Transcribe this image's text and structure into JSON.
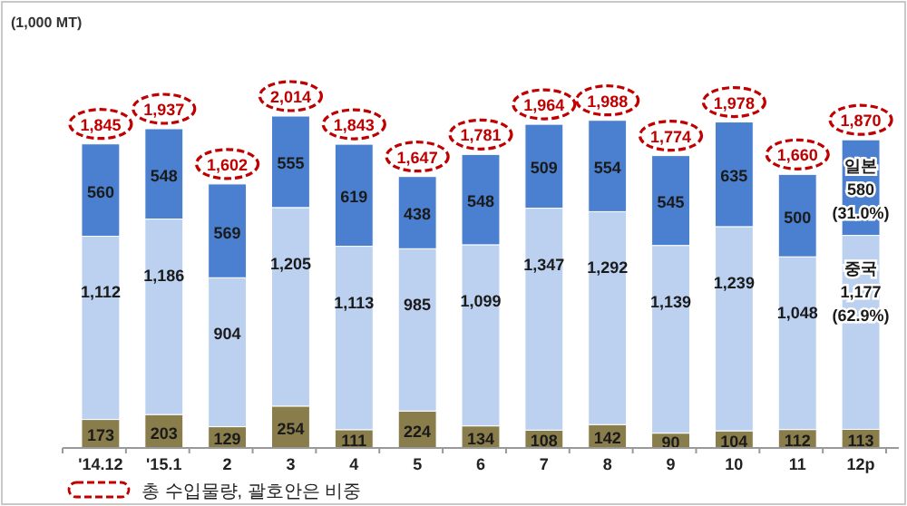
{
  "chart_data": {
    "type": "bar",
    "stacked": true,
    "categories": [
      "'14.12",
      "'15.1",
      "2",
      "3",
      "4",
      "5",
      "6",
      "7",
      "8",
      "9",
      "10",
      "11",
      "12p"
    ],
    "series": [
      {
        "color": "#8a7d4c",
        "values": [
          173,
          203,
          129,
          254,
          111,
          224,
          134,
          108,
          142,
          90,
          104,
          112,
          113
        ],
        "value_labels": [
          "173",
          "203",
          "129",
          "254",
          "111",
          "224",
          "134",
          "108",
          "142",
          "90",
          "104",
          "112",
          "113"
        ]
      },
      {
        "name": "중국",
        "color": "#bcd0f0",
        "values": [
          1112,
          1186,
          904,
          1205,
          1113,
          985,
          1099,
          1347,
          1292,
          1139,
          1239,
          1048,
          1177
        ],
        "value_labels": [
          "1,112",
          "1,186",
          "904",
          "1,205",
          "1,113",
          "985",
          "1,099",
          "1,347",
          "1,292",
          "1,139",
          "1,239",
          "1,048",
          "1,177 (62.9%)"
        ]
      },
      {
        "name": "일본",
        "color": "#4a80cf",
        "values": [
          560,
          548,
          569,
          555,
          619,
          438,
          548,
          509,
          554,
          545,
          635,
          500,
          580
        ],
        "value_labels": [
          "560",
          "548",
          "569",
          "555",
          "619",
          "438",
          "548",
          "509",
          "554",
          "545",
          "635",
          "500",
          "580 (31.0%)"
        ]
      }
    ],
    "totals": [
      "1,845",
      "1,937",
      "1,602",
      "2,014",
      "1,843",
      "1,647",
      "1,781",
      "1,964",
      "1,988",
      "1,774",
      "1,978",
      "1,660",
      "1,870"
    ],
    "annotations": [
      "(1,000 MT)",
      "총 수입물량, 괄호안은 비중"
    ]
  }
}
